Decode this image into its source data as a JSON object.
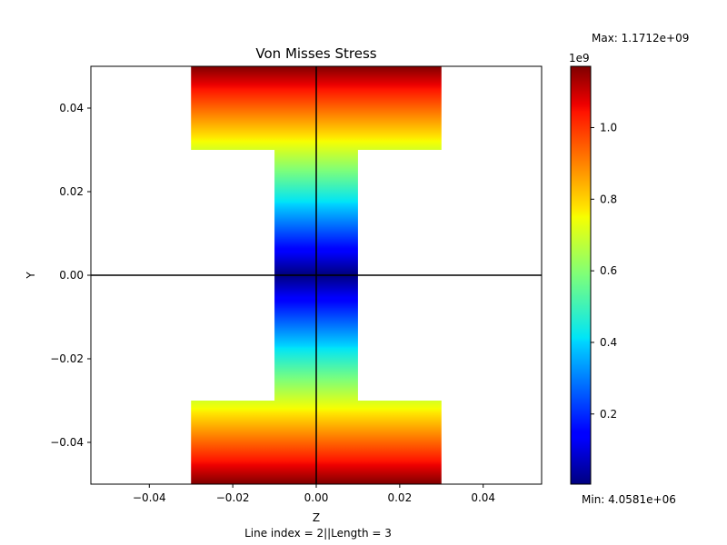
{
  "chart_data": {
    "type": "heatmap",
    "title": "Von Misses Stress",
    "xlabel": "Z",
    "ylabel": "Y",
    "footer": "Line index = 2||Length = 3",
    "xlim": [
      -0.054,
      0.054
    ],
    "ylim": [
      -0.05,
      0.05
    ],
    "x_ticks": [
      -0.04,
      -0.02,
      0.0,
      0.02,
      0.04
    ],
    "x_tick_labels": [
      "−0.04",
      "−0.02",
      "0.00",
      "0.02",
      "0.04"
    ],
    "y_ticks": [
      0.04,
      0.02,
      0.0,
      -0.02,
      -0.04
    ],
    "y_tick_labels": [
      "0.04",
      "0.02",
      "0.00",
      "−0.02",
      "−0.04"
    ],
    "section": {
      "shape": "I-beam",
      "flange_width": 0.06,
      "web_width": 0.02,
      "height": 0.1,
      "flange_inner_y": 0.03
    },
    "axis_lines": {
      "horizontal_at_y": 0.0,
      "vertical_at_z": 0.0
    },
    "stress_field": "linear in |Y|, zero at neutral axis",
    "colormap": "jet",
    "colorbar": {
      "min_value": 4058100,
      "max_value": 1171200000,
      "ticks": [
        0.2,
        0.4,
        0.6,
        0.8,
        1.0
      ],
      "tick_labels": [
        "0.2",
        "0.4",
        "0.6",
        "0.8",
        "1.0"
      ],
      "scale_label": "1e9",
      "max_label": "Max: 1.1712e+09",
      "min_label": "Min: 4.0581e+06"
    }
  }
}
